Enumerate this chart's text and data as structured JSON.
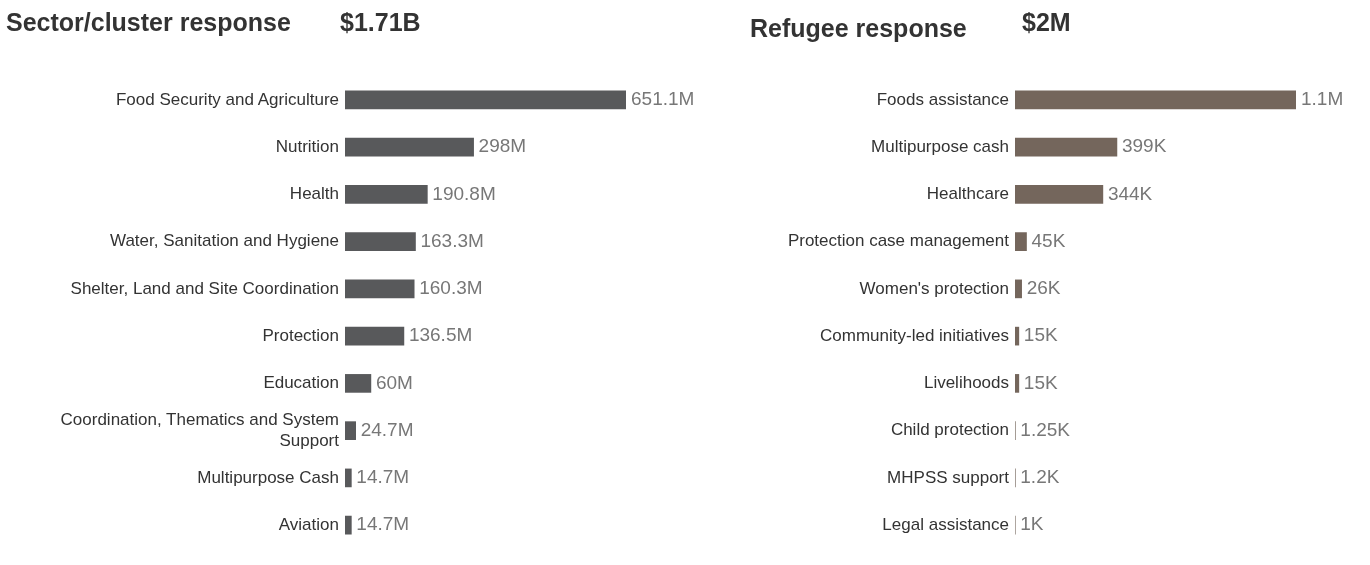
{
  "chart_data": [
    {
      "type": "bar",
      "orientation": "horizontal",
      "title": "Sector/cluster response",
      "subtitle": "$1.71B",
      "color": "#58595b",
      "grid": false,
      "legend": false,
      "categories": [
        "Food Security and Agriculture",
        "Nutrition",
        "Health",
        "Water, Sanitation and Hygiene",
        "Shelter, Land and Site Coordination",
        "Protection",
        "Education",
        "Coordination, Thematics and System Support",
        "Multipurpose Cash",
        "Aviation"
      ],
      "values": [
        651100000,
        298000000,
        190800000,
        163300000,
        160300000,
        136500000,
        60000000,
        24700000,
        14700000,
        14700000
      ],
      "value_labels": [
        "651.1M",
        "298M",
        "190.8M",
        "163.3M",
        "160.3M",
        "136.5M",
        "60M",
        "24.7M",
        "14.7M",
        "14.7M"
      ]
    },
    {
      "type": "bar",
      "orientation": "horizontal",
      "title": "Refugee response",
      "subtitle": "$2M",
      "color": "#74665c",
      "grid": false,
      "legend": false,
      "categories": [
        "Foods assistance",
        "Multipurpose cash",
        "Healthcare",
        "Protection case management",
        "Women's protection",
        "Community-led initiatives",
        "Livelihoods",
        "Child protection",
        "MHPSS support",
        "Legal assistance"
      ],
      "values": [
        1100000,
        399000,
        344000,
        45000,
        26000,
        15000,
        15000,
        1250,
        1200,
        1000
      ],
      "value_labels": [
        "1.1M",
        "399K",
        "344K",
        "45K",
        "26K",
        "15K",
        "15K",
        "1.25K",
        "1.2K",
        "1K"
      ]
    }
  ]
}
